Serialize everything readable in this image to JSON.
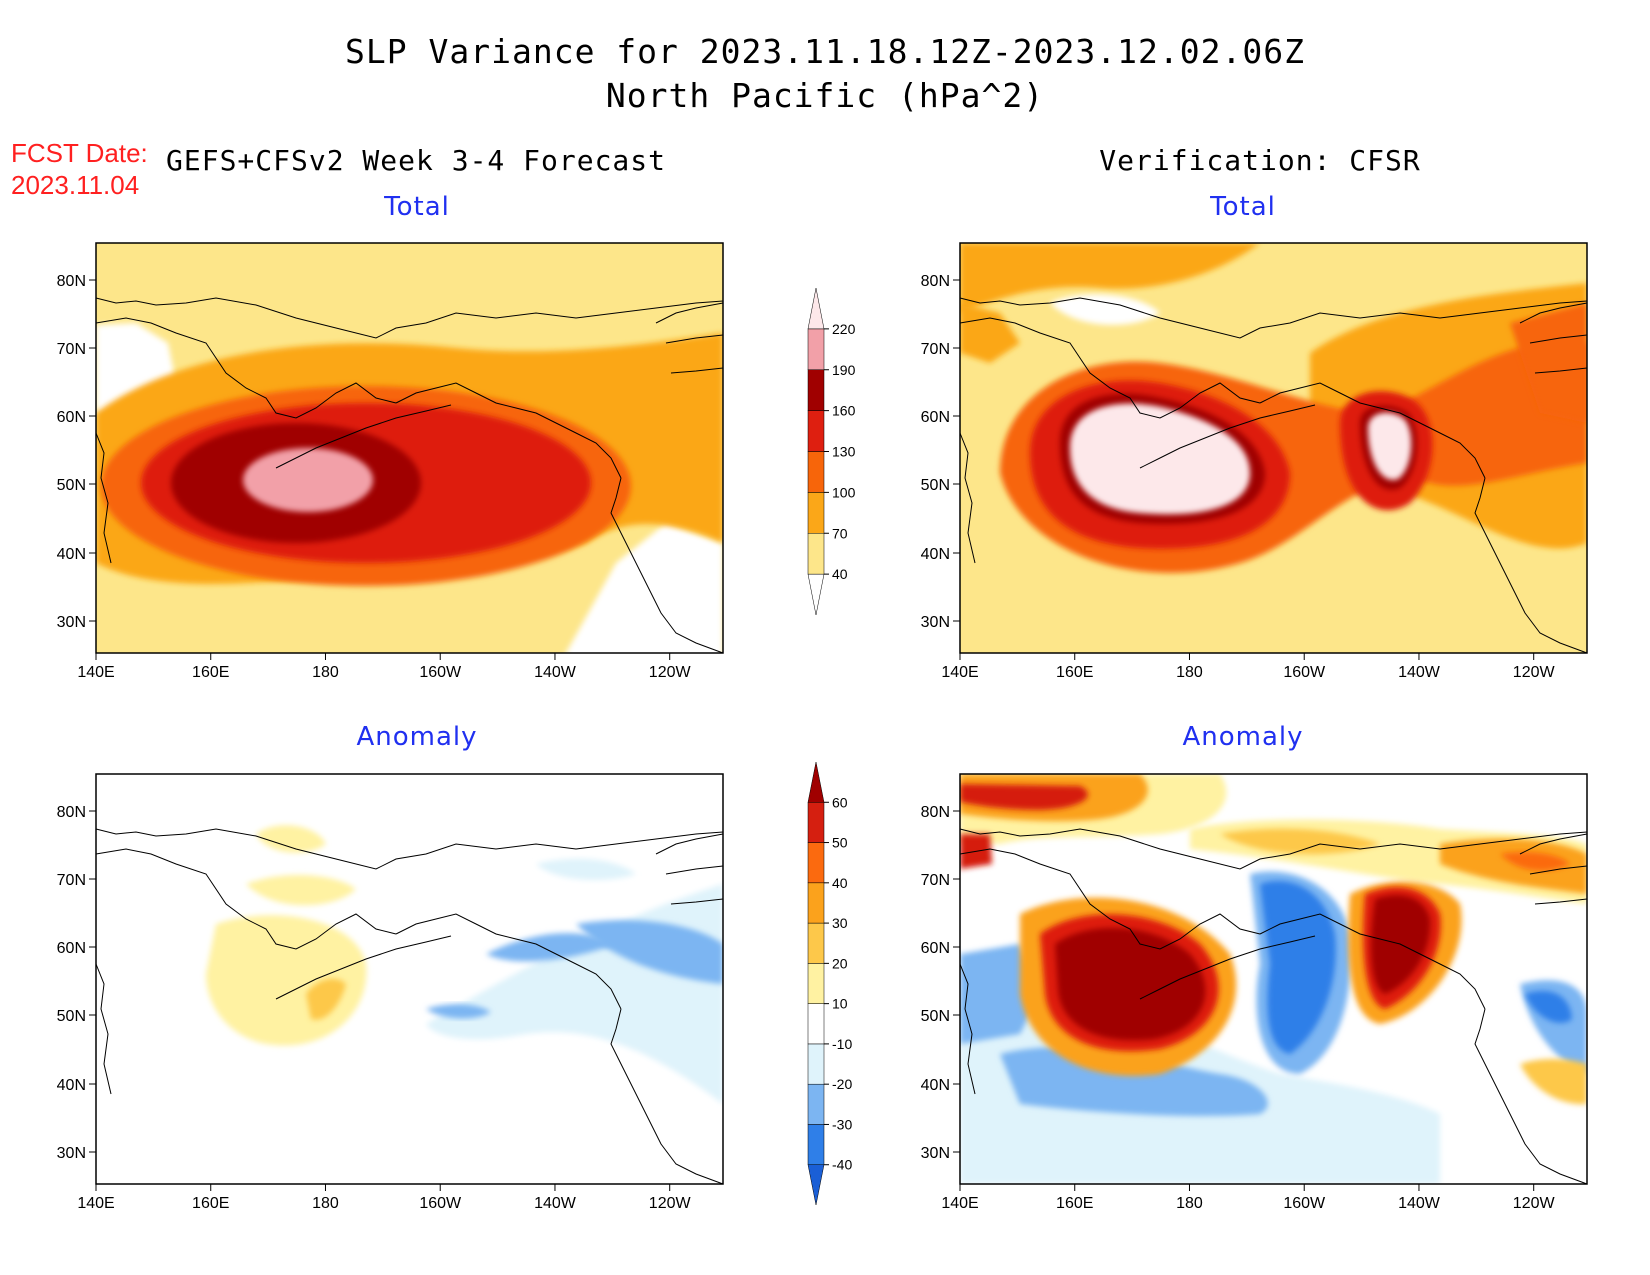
{
  "title_line1": "SLP Variance for 2023.11.18.12Z-2023.12.02.06Z",
  "title_line2": "North Pacific (hPa^2)",
  "fcst_date_label": "FCST Date:",
  "fcst_date_value": "2023.11.04",
  "left_heading": "GEFS+CFSv2 Week 3-4 Forecast",
  "right_heading": "Verification: CFSR",
  "panels": [
    {
      "id": "forecast-total",
      "title": "Total"
    },
    {
      "id": "verification-total",
      "title": "Total"
    },
    {
      "id": "forecast-anomaly",
      "title": "Anomaly"
    },
    {
      "id": "verification-anomaly",
      "title": "Anomaly"
    }
  ],
  "axes": {
    "lon_labels": [
      "140E",
      "160E",
      "180",
      "160W",
      "140W",
      "120W"
    ],
    "lat_labels": [
      "80N",
      "70N",
      "60N",
      "50N",
      "40N",
      "30N"
    ]
  },
  "colorbar_total": {
    "levels": [
      "40",
      "70",
      "100",
      "130",
      "160",
      "190",
      "220"
    ],
    "colors": [
      "#ffffff",
      "#fde68a",
      "#fba718",
      "#f7650a",
      "#de1f10",
      "#a00000",
      "#f2a0a8",
      "#fde8ea"
    ]
  },
  "colorbar_anomaly": {
    "levels": [
      "-40",
      "-30",
      "-20",
      "-10",
      "10",
      "20",
      "30",
      "40",
      "50",
      "60"
    ],
    "colors": [
      "#1a5fd6",
      "#2f7fe8",
      "#7cb5f2",
      "#dff3fb",
      "#ffffff",
      "#fff2a2",
      "#fdc84a",
      "#fba21c",
      "#fb6a0f",
      "#d51f10",
      "#a00000"
    ]
  }
}
